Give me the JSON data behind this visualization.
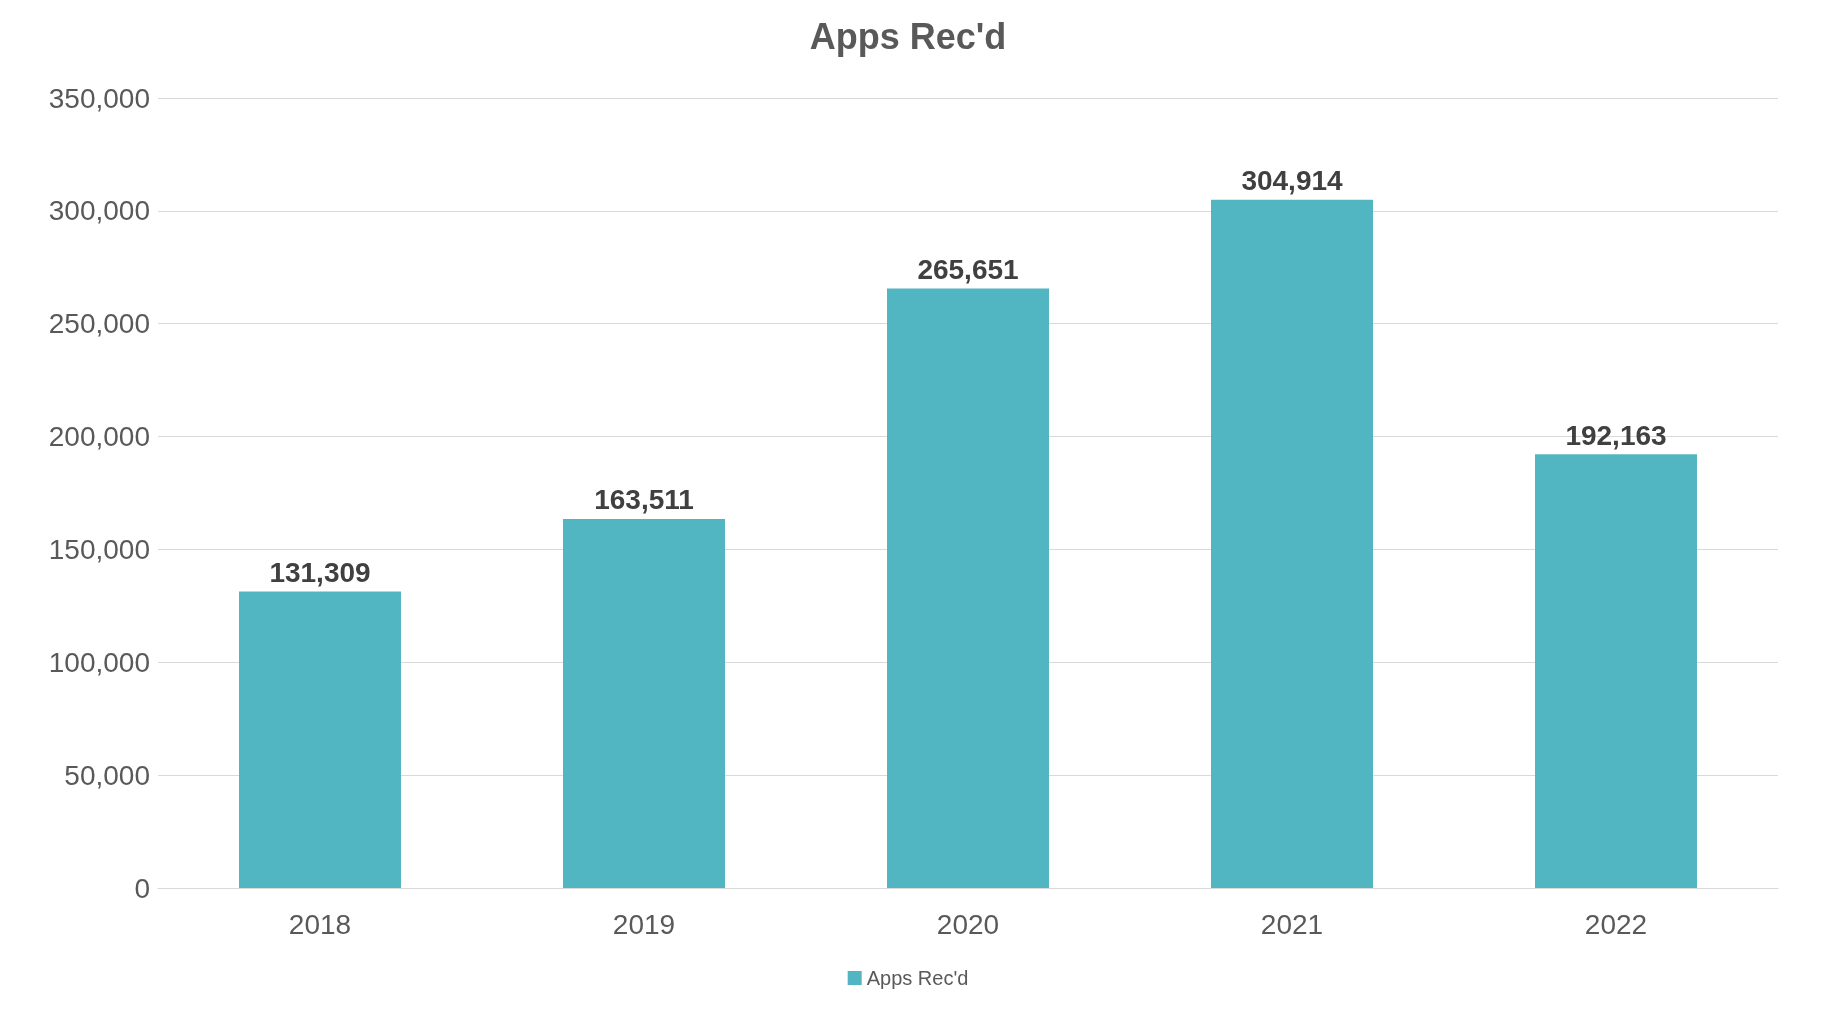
{
  "chart_data": {
    "type": "bar",
    "title": "Apps Rec'd",
    "categories": [
      "2018",
      "2019",
      "2020",
      "2021",
      "2022"
    ],
    "series": [
      {
        "name": "Apps Rec'd",
        "color": "#52b6c2",
        "values": [
          131309,
          163511,
          265651,
          304914,
          192163
        ],
        "value_labels": [
          "131,309",
          "163,511",
          "265,651",
          "304,914",
          "192,163"
        ]
      }
    ],
    "ylim": [
      0,
      350000
    ],
    "yticks": [
      {
        "value": 0,
        "label": "0"
      },
      {
        "value": 50000,
        "label": "50,000"
      },
      {
        "value": 100000,
        "label": "100,000"
      },
      {
        "value": 150000,
        "label": "150,000"
      },
      {
        "value": 200000,
        "label": "200,000"
      },
      {
        "value": 250000,
        "label": "250,000"
      },
      {
        "value": 300000,
        "label": "300,000"
      },
      {
        "value": 350000,
        "label": "350,000"
      }
    ],
    "grid": true,
    "legend": "bottom"
  }
}
